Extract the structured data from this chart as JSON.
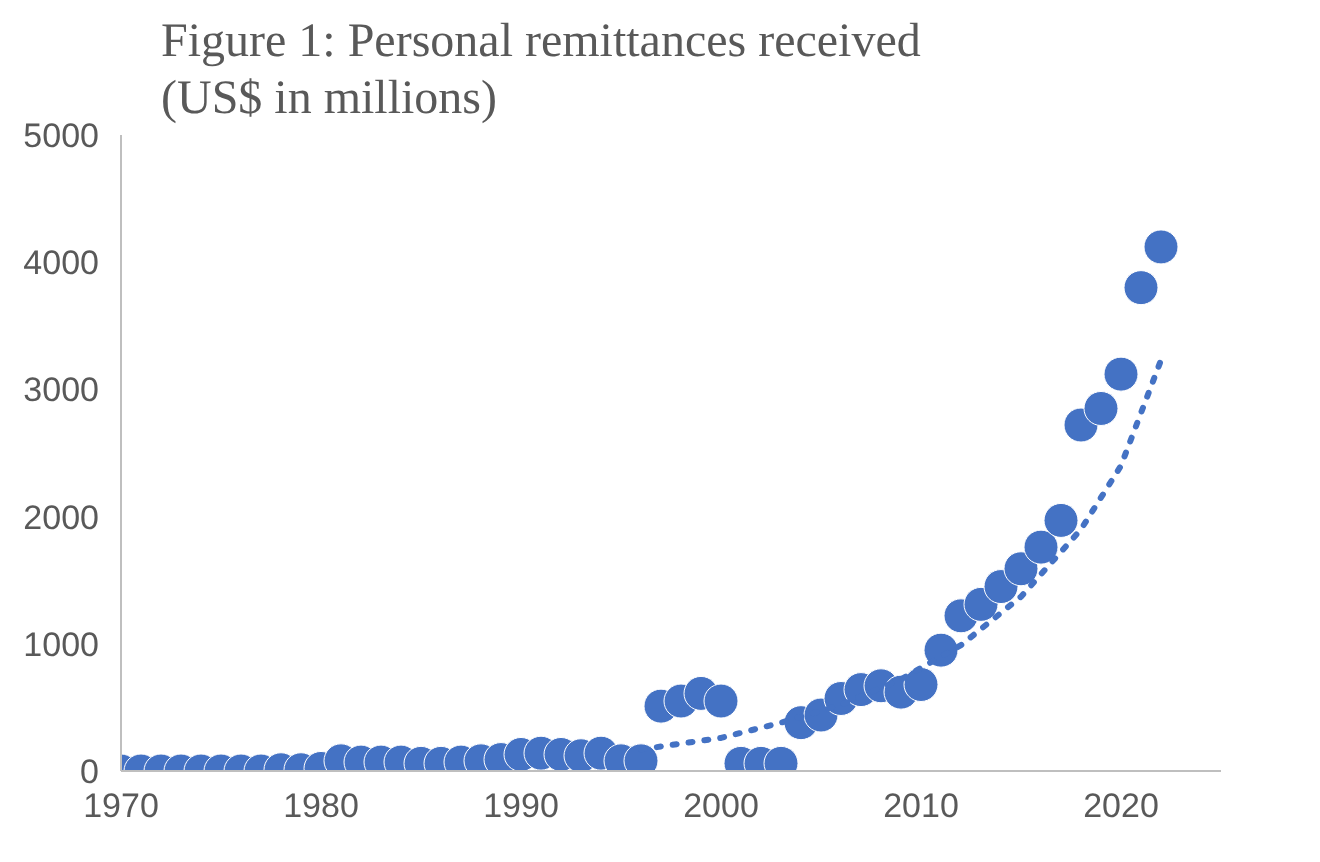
{
  "chart_data": {
    "type": "scatter",
    "title": "Figure 1: Personal remittances received\n(US$ in millions)",
    "marker": "circle",
    "grid": false,
    "xlim": [
      1970,
      2025
    ],
    "xticks": [
      1970,
      1980,
      1990,
      2000,
      2010,
      2020
    ],
    "ylim": [
      0,
      5000
    ],
    "yticks": [
      0,
      1000,
      2000,
      3000,
      4000,
      5000
    ],
    "x": [
      1970,
      1971,
      1972,
      1973,
      1974,
      1975,
      1976,
      1977,
      1978,
      1979,
      1980,
      1981,
      1982,
      1983,
      1984,
      1985,
      1986,
      1987,
      1988,
      1989,
      1990,
      1991,
      1992,
      1993,
      1994,
      1995,
      1996,
      1997,
      1998,
      1999,
      2000,
      2001,
      2002,
      2003,
      2004,
      2005,
      2006,
      2007,
      2008,
      2009,
      2010,
      2011,
      2012,
      2013,
      2014,
      2015,
      2016,
      2017,
      2018,
      2019,
      2020,
      2021,
      2022
    ],
    "series": [
      {
        "color": "#4472c4",
        "values": [
          0,
          0,
          0,
          0,
          0,
          0,
          0,
          0,
          10,
          10,
          20,
          80,
          70,
          70,
          70,
          60,
          60,
          70,
          80,
          90,
          130,
          140,
          130,
          120,
          140,
          80,
          80,
          510,
          550,
          610,
          550,
          60,
          60,
          60,
          380,
          440,
          570,
          640,
          670,
          620,
          680,
          950,
          1220,
          1310,
          1450,
          1590,
          1760,
          1970,
          2720,
          2850,
          3120,
          3800,
          4120
        ]
      },
      {
        "type": "line",
        "line_style": "dotted",
        "marker": "none",
        "color": "#4472c4",
        "x": [
          1996,
          2000,
          2003,
          2006,
          2009,
          2012,
          2015,
          2018,
          2020,
          2022
        ],
        "values": [
          170,
          260,
          380,
          520,
          720,
          990,
          1370,
          1900,
          2400,
          3230
        ]
      }
    ]
  }
}
